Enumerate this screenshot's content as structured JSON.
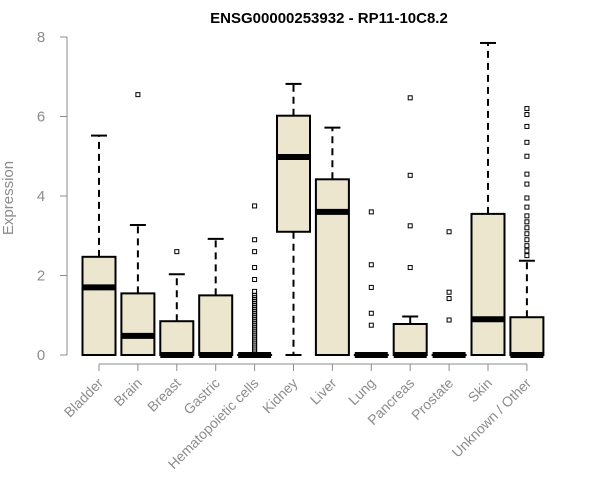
{
  "chart_data": {
    "type": "box",
    "title": "ENSG00000253932 - RP11-10C8.2",
    "xlabel": "",
    "ylabel": "Expression",
    "ylim": [
      0,
      8
    ],
    "yticks": [
      0,
      2,
      4,
      6,
      8
    ],
    "grid": false,
    "colors": {
      "box_fill": "#ede6cf",
      "stroke": "#000000",
      "axis": "#8c8c8c",
      "title": "#000000"
    },
    "categories": [
      "Bladder",
      "Brain",
      "Breast",
      "Gastric",
      "Hematopoietic cells",
      "Kidney",
      "Liver",
      "Lung",
      "Pancreas",
      "Prostate",
      "Skin",
      "Unknown / Other"
    ],
    "boxes": [
      {
        "name": "Bladder",
        "q1": 0,
        "median": 1.7,
        "q3": 2.47,
        "whisker_low": 0,
        "whisker_high": 5.52,
        "outliers": []
      },
      {
        "name": "Brain",
        "q1": 0,
        "median": 0.48,
        "q3": 1.55,
        "whisker_low": 0,
        "whisker_high": 3.27,
        "outliers": [
          6.55
        ]
      },
      {
        "name": "Breast",
        "q1": 0,
        "median": 0,
        "q3": 0.85,
        "whisker_low": 0,
        "whisker_high": 2.03,
        "outliers": [
          2.6
        ]
      },
      {
        "name": "Gastric",
        "q1": 0,
        "median": 0,
        "q3": 1.5,
        "whisker_low": 0,
        "whisker_high": 2.92,
        "outliers": []
      },
      {
        "name": "Hematopoietic cells",
        "q1": 0,
        "median": 0,
        "q3": 0,
        "whisker_low": 0,
        "whisker_high": 0,
        "outliers": [
          0.05,
          0.1,
          0.15,
          0.2,
          0.25,
          0.3,
          0.35,
          0.4,
          0.45,
          0.5,
          0.55,
          0.6,
          0.65,
          0.7,
          0.75,
          0.8,
          0.85,
          0.9,
          0.95,
          1.0,
          1.05,
          1.1,
          1.15,
          1.2,
          1.25,
          1.3,
          1.35,
          1.4,
          1.45,
          1.5,
          1.6,
          1.9,
          2.2,
          2.6,
          2.9,
          3.75
        ]
      },
      {
        "name": "Kidney",
        "q1": 3.1,
        "median": 4.98,
        "q3": 6.02,
        "whisker_low": 0,
        "whisker_high": 6.82,
        "outliers": []
      },
      {
        "name": "Liver",
        "q1": 0,
        "median": 3.6,
        "q3": 4.42,
        "whisker_low": 0,
        "whisker_high": 5.72,
        "outliers": []
      },
      {
        "name": "Lung",
        "q1": 0,
        "median": 0,
        "q3": 0,
        "whisker_low": 0,
        "whisker_high": 0,
        "outliers": [
          0.75,
          1.05,
          1.7,
          2.27,
          3.6
        ]
      },
      {
        "name": "Pancreas",
        "q1": 0,
        "median": 0,
        "q3": 0.78,
        "whisker_low": 0,
        "whisker_high": 0.97,
        "outliers": [
          2.2,
          3.25,
          4.52,
          6.47
        ]
      },
      {
        "name": "Prostate",
        "q1": 0,
        "median": 0,
        "q3": 0,
        "whisker_low": 0,
        "whisker_high": 0,
        "outliers": [
          0.88,
          1.42,
          1.58,
          3.1
        ]
      },
      {
        "name": "Skin",
        "q1": 0,
        "median": 0.9,
        "q3": 3.55,
        "whisker_low": 0,
        "whisker_high": 7.85,
        "outliers": []
      },
      {
        "name": "Unknown / Other",
        "q1": 0,
        "median": 0,
        "q3": 0.95,
        "whisker_low": 0,
        "whisker_high": 2.37,
        "outliers": [
          2.5,
          2.62,
          2.75,
          2.9,
          3.05,
          3.2,
          3.35,
          3.5,
          3.72,
          3.95,
          4.3,
          4.55,
          5.0,
          5.35,
          5.75,
          6.05,
          6.2
        ]
      }
    ]
  }
}
